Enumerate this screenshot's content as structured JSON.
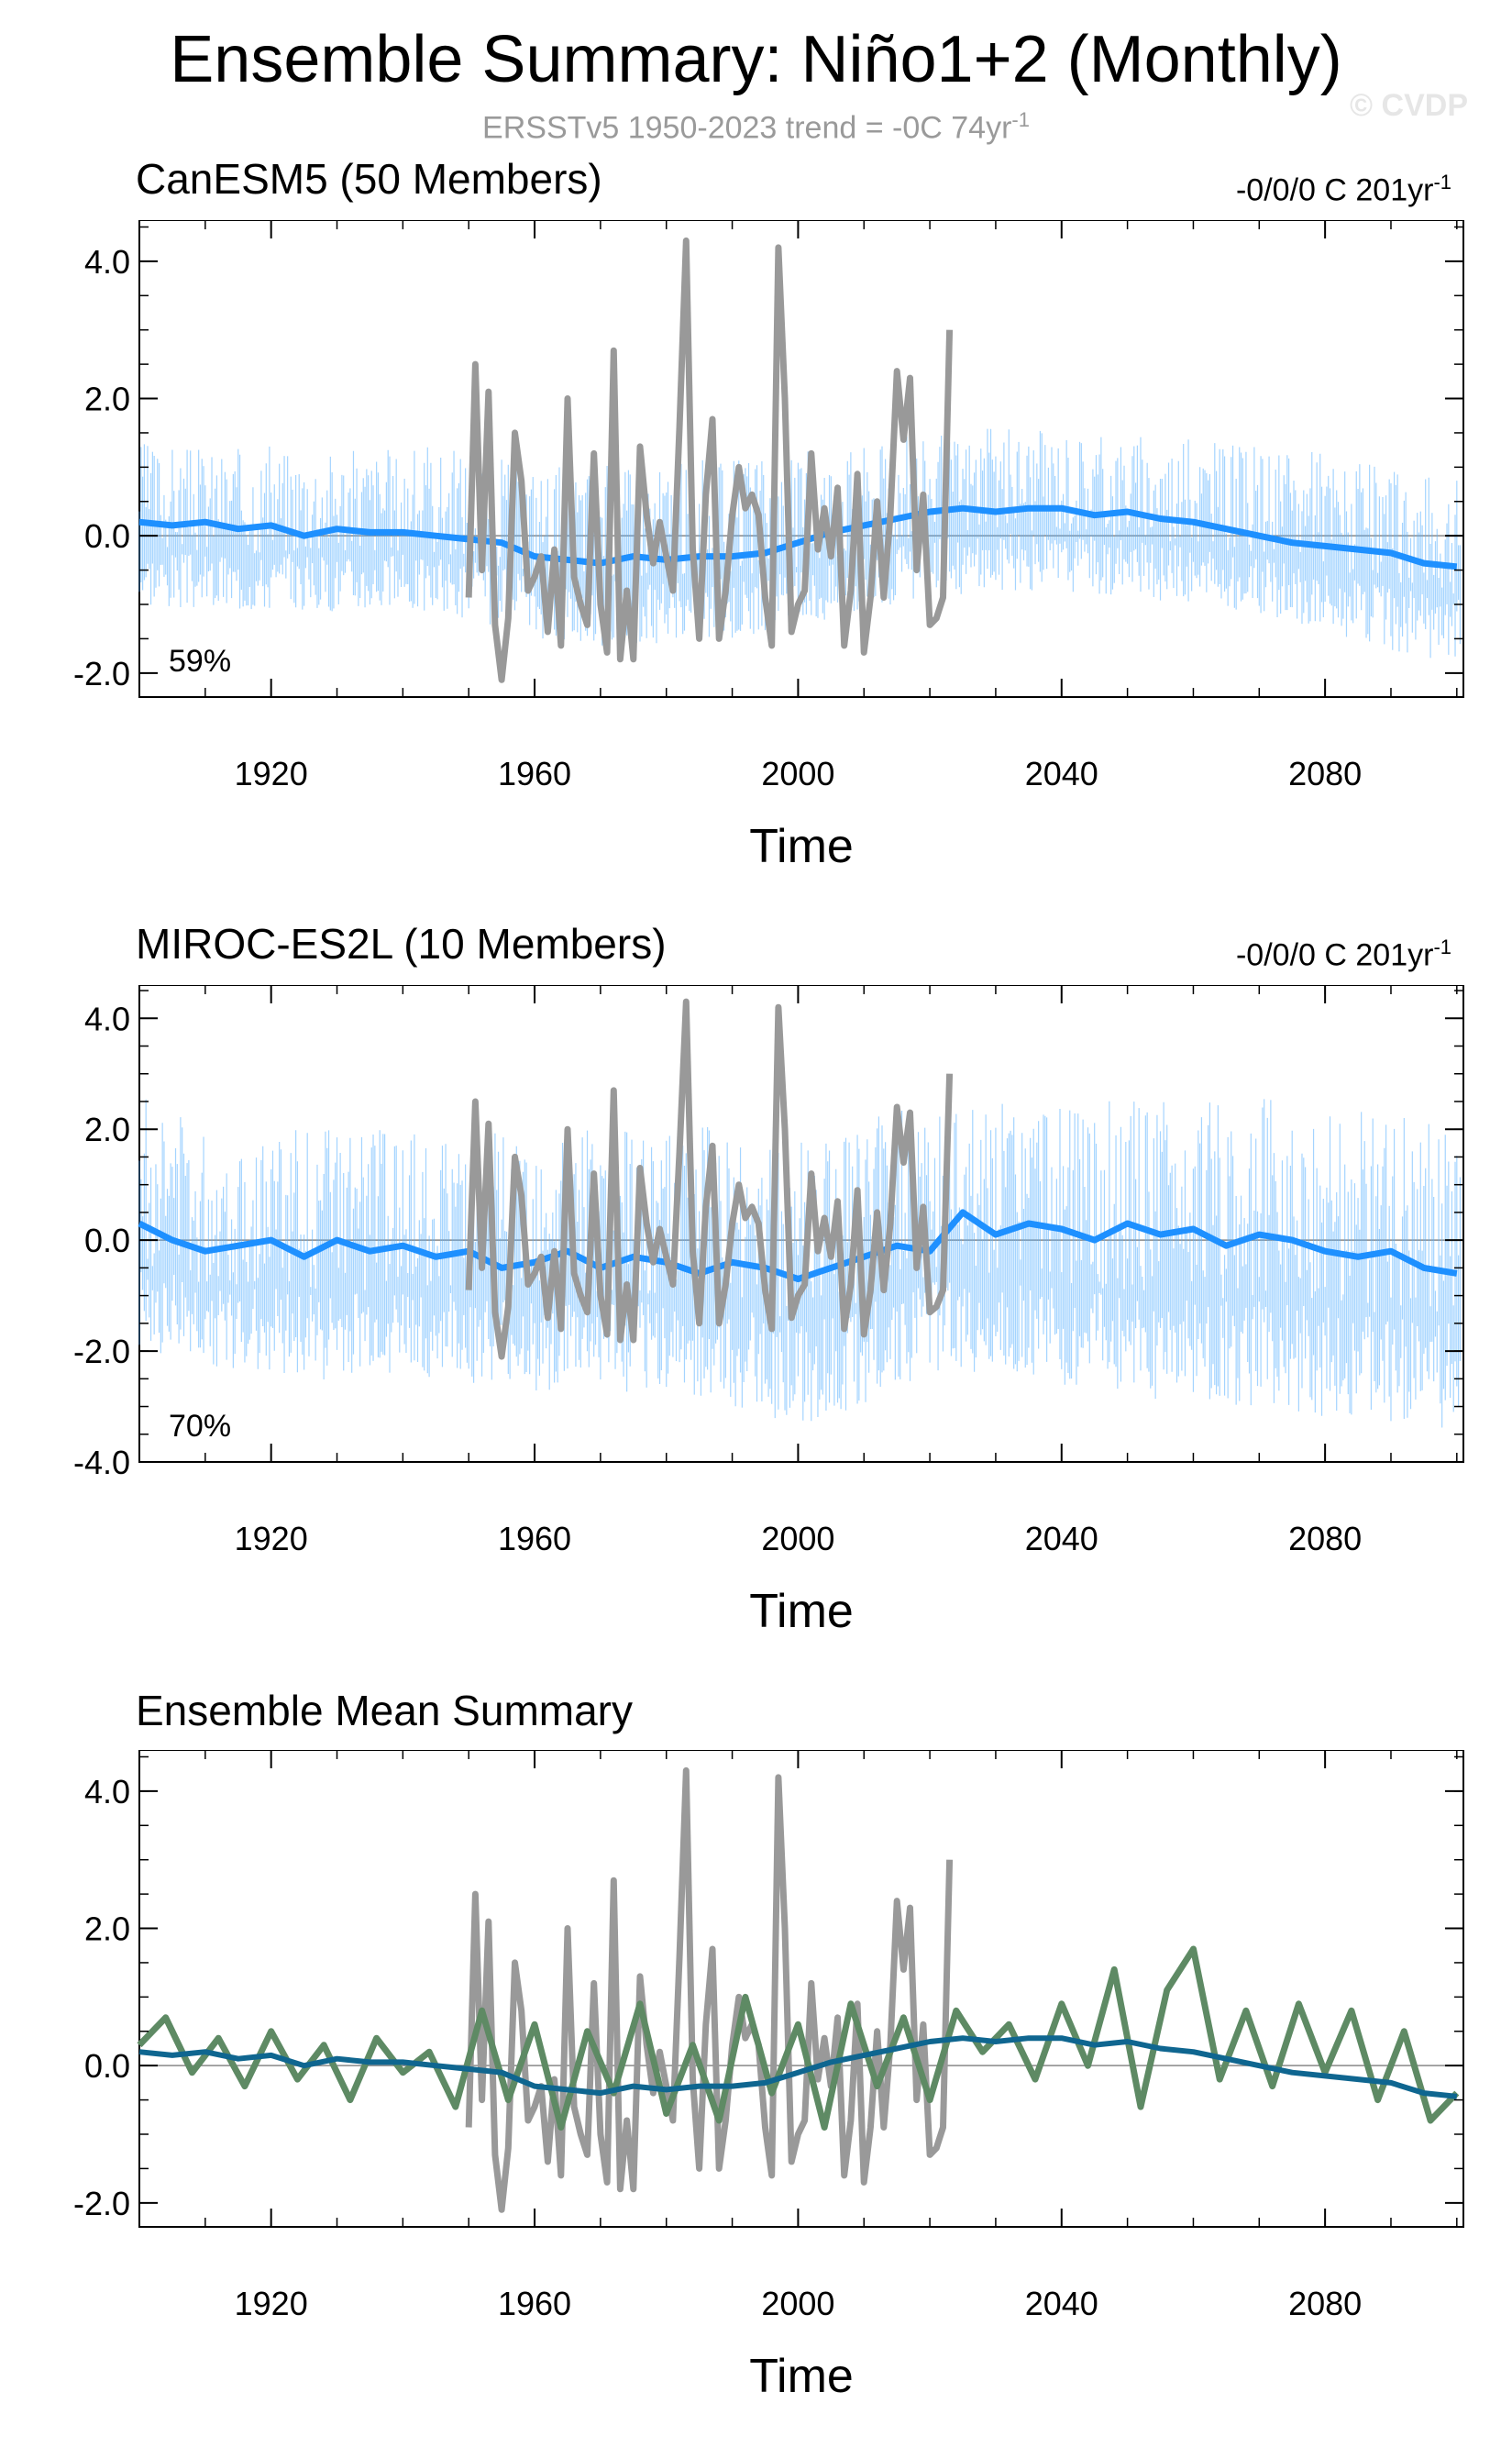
{
  "title": "Ensemble Summary: Niño1+2 (Monthly)",
  "subtitle": {
    "text": "ERSSTv5 1950-2023 trend = -0C 74yr",
    "sup": "-1"
  },
  "watermark": "© CVDP",
  "colors": {
    "observations": "#999999",
    "canesm5_title": "#1a6fa0",
    "miroc_title": "#5e8a64",
    "member_spread": "#5ab0ff",
    "ensemble_mean": "#1e90ff",
    "canesm5_mean_line": "#0f6690",
    "miroc_mean_line": "#5e8a64"
  },
  "chart_data": [
    {
      "type": "line",
      "title": "CanESM5 (50 Members)",
      "trend": {
        "text": "-0/0/0 C 201yr",
        "sup": "-1"
      },
      "percent_label": "59%",
      "xlabel": "Time",
      "xlim": [
        1900,
        2101
      ],
      "ylim": [
        -2.35,
        4.6
      ],
      "xticks": [
        "1920",
        "1960",
        "2000",
        "2040",
        "2080"
      ],
      "yticks": [
        "4.0",
        "2.0",
        "0.0",
        "-2.0"
      ],
      "grid": false,
      "series": [
        {
          "role": "member-spread",
          "x": [
            1900,
            1910,
            1920,
            1930,
            1940,
            1950,
            1960,
            1970,
            1980,
            1990,
            2000,
            2010,
            2020,
            2030,
            2040,
            2050,
            2060,
            2070,
            2080,
            2090,
            2100
          ],
          "upper": [
            1.4,
            1.3,
            1.3,
            1.3,
            1.3,
            1.3,
            1.1,
            1.1,
            1.1,
            1.1,
            1.2,
            1.4,
            1.5,
            1.6,
            1.6,
            1.5,
            1.4,
            1.3,
            1.2,
            1.0,
            0.9
          ],
          "lower": [
            -1.0,
            -1.1,
            -1.1,
            -1.1,
            -1.1,
            -1.2,
            -1.5,
            -1.6,
            -1.6,
            -1.5,
            -1.4,
            -1.1,
            -0.9,
            -0.8,
            -0.8,
            -0.9,
            -1.0,
            -1.2,
            -1.4,
            -1.7,
            -1.9
          ]
        },
        {
          "role": "ensemble-mean",
          "x": [
            1900,
            1905,
            1910,
            1915,
            1920,
            1925,
            1930,
            1935,
            1940,
            1945,
            1950,
            1955,
            1960,
            1965,
            1970,
            1975,
            1980,
            1985,
            1990,
            1995,
            2000,
            2005,
            2010,
            2015,
            2020,
            2025,
            2030,
            2035,
            2040,
            2045,
            2050,
            2055,
            2060,
            2065,
            2070,
            2075,
            2080,
            2085,
            2090,
            2095,
            2100
          ],
          "y": [
            0.2,
            0.15,
            0.2,
            0.1,
            0.15,
            0.0,
            0.1,
            0.05,
            0.05,
            0.0,
            -0.05,
            -0.1,
            -0.3,
            -0.35,
            -0.4,
            -0.3,
            -0.35,
            -0.3,
            -0.3,
            -0.25,
            -0.1,
            0.05,
            0.15,
            0.25,
            0.35,
            0.4,
            0.35,
            0.4,
            0.4,
            0.3,
            0.35,
            0.25,
            0.2,
            0.1,
            0.0,
            -0.1,
            -0.15,
            -0.2,
            -0.25,
            -0.4,
            -0.45
          ]
        },
        {
          "role": "observations",
          "x": [
            1950,
            1951,
            1952,
            1953,
            1954,
            1955,
            1956,
            1957,
            1958,
            1959,
            1960,
            1961,
            1962,
            1963,
            1964,
            1965,
            1966,
            1967,
            1968,
            1969,
            1970,
            1971,
            1972,
            1973,
            1974,
            1975,
            1976,
            1977,
            1978,
            1979,
            1980,
            1981,
            1982,
            1983,
            1984,
            1985,
            1986,
            1987,
            1988,
            1989,
            1990,
            1991,
            1992,
            1993,
            1994,
            1995,
            1996,
            1997,
            1998,
            1999,
            2000,
            2001,
            2002,
            2003,
            2004,
            2005,
            2006,
            2007,
            2008,
            2009,
            2010,
            2011,
            2012,
            2013,
            2014,
            2015,
            2016,
            2017,
            2018,
            2019,
            2020,
            2021,
            2022,
            2023
          ],
          "y": [
            -0.9,
            2.5,
            -0.5,
            2.1,
            -1.3,
            -2.1,
            -1.2,
            1.5,
            0.8,
            -0.8,
            -0.6,
            -0.3,
            -1.4,
            -0.2,
            -1.6,
            2.0,
            -0.6,
            -1.0,
            -1.3,
            1.2,
            -1.0,
            -1.7,
            2.7,
            -1.8,
            -0.8,
            -1.8,
            1.3,
            0.3,
            -0.4,
            0.2,
            -0.3,
            -0.8,
            1.6,
            4.3,
            -0.2,
            -1.5,
            0.6,
            1.7,
            -1.5,
            -0.8,
            0.3,
            1.0,
            0.4,
            0.6,
            0.3,
            -0.9,
            -1.6,
            4.2,
            2.0,
            -1.4,
            -1.0,
            -0.8,
            1.2,
            -0.2,
            0.4,
            -0.3,
            0.7,
            -1.6,
            -0.8,
            0.9,
            -1.7,
            -0.9,
            0.5,
            -0.9,
            0.3,
            2.4,
            1.4,
            2.3,
            -0.5,
            0.6,
            -1.3,
            -1.2,
            -0.9,
            3.0
          ]
        }
      ]
    },
    {
      "type": "line",
      "title": "MIROC-ES2L (10 Members)",
      "trend": {
        "text": "-0/0/0 C 201yr",
        "sup": "-1"
      },
      "percent_label": "70%",
      "xlabel": "Time",
      "xlim": [
        1900,
        2101
      ],
      "ylim": [
        -4.0,
        4.6
      ],
      "xticks": [
        "1920",
        "1960",
        "2000",
        "2040",
        "2080"
      ],
      "yticks": [
        "4.0",
        "2.0",
        "0.0",
        "-2.0",
        "-4.0"
      ],
      "grid": false,
      "series": [
        {
          "role": "member-spread",
          "x": [
            1900,
            1910,
            1920,
            1930,
            1940,
            1950,
            1960,
            1970,
            1980,
            1990,
            2000,
            2010,
            2020,
            2030,
            2040,
            2050,
            2060,
            2070,
            2080,
            2090,
            2100
          ],
          "upper": [
            2.6,
            2.0,
            2.0,
            2.0,
            2.0,
            2.1,
            2.0,
            2.0,
            2.0,
            2.1,
            2.1,
            2.2,
            2.6,
            2.5,
            2.4,
            2.6,
            2.5,
            2.6,
            2.5,
            2.3,
            2.0
          ],
          "lower": [
            -2.0,
            -2.3,
            -2.4,
            -2.6,
            -2.4,
            -2.6,
            -2.8,
            -2.7,
            -2.8,
            -3.0,
            -3.4,
            -3.0,
            -2.4,
            -2.4,
            -2.6,
            -2.8,
            -3.0,
            -3.0,
            -3.2,
            -3.4,
            -3.4
          ]
        },
        {
          "role": "ensemble-mean",
          "x": [
            1900,
            1905,
            1910,
            1915,
            1920,
            1925,
            1930,
            1935,
            1940,
            1945,
            1950,
            1955,
            1960,
            1965,
            1970,
            1975,
            1980,
            1985,
            1990,
            1995,
            2000,
            2005,
            2010,
            2015,
            2020,
            2025,
            2030,
            2035,
            2040,
            2045,
            2050,
            2055,
            2060,
            2065,
            2070,
            2075,
            2080,
            2085,
            2090,
            2095,
            2100
          ],
          "y": [
            0.3,
            0.0,
            -0.2,
            -0.1,
            0.0,
            -0.3,
            0.0,
            -0.2,
            -0.1,
            -0.3,
            -0.2,
            -0.5,
            -0.4,
            -0.2,
            -0.5,
            -0.3,
            -0.4,
            -0.6,
            -0.4,
            -0.5,
            -0.7,
            -0.5,
            -0.3,
            -0.1,
            -0.2,
            0.5,
            0.1,
            0.3,
            0.2,
            0.0,
            0.3,
            0.1,
            0.2,
            -0.1,
            0.1,
            0.0,
            -0.2,
            -0.3,
            -0.2,
            -0.5,
            -0.6
          ]
        },
        {
          "role": "observations",
          "x": [
            1950,
            1951,
            1952,
            1953,
            1954,
            1955,
            1956,
            1957,
            1958,
            1959,
            1960,
            1961,
            1962,
            1963,
            1964,
            1965,
            1966,
            1967,
            1968,
            1969,
            1970,
            1971,
            1972,
            1973,
            1974,
            1975,
            1976,
            1977,
            1978,
            1979,
            1980,
            1981,
            1982,
            1983,
            1984,
            1985,
            1986,
            1987,
            1988,
            1989,
            1990,
            1991,
            1992,
            1993,
            1994,
            1995,
            1996,
            1997,
            1998,
            1999,
            2000,
            2001,
            2002,
            2003,
            2004,
            2005,
            2006,
            2007,
            2008,
            2009,
            2010,
            2011,
            2012,
            2013,
            2014,
            2015,
            2016,
            2017,
            2018,
            2019,
            2020,
            2021,
            2022,
            2023
          ],
          "y": [
            -0.9,
            2.5,
            -0.5,
            2.1,
            -1.3,
            -2.1,
            -1.2,
            1.5,
            0.8,
            -0.8,
            -0.6,
            -0.3,
            -1.4,
            -0.2,
            -1.6,
            2.0,
            -0.6,
            -1.0,
            -1.3,
            1.2,
            -1.0,
            -1.7,
            2.7,
            -1.8,
            -0.8,
            -1.8,
            1.3,
            0.3,
            -0.4,
            0.2,
            -0.3,
            -0.8,
            1.6,
            4.3,
            -0.2,
            -1.5,
            0.6,
            1.7,
            -1.5,
            -0.8,
            0.3,
            1.0,
            0.4,
            0.6,
            0.3,
            -0.9,
            -1.6,
            4.2,
            2.0,
            -1.4,
            -1.0,
            -0.8,
            1.2,
            -0.2,
            0.4,
            -0.3,
            0.7,
            -1.6,
            -0.8,
            0.9,
            -1.7,
            -0.9,
            0.5,
            -0.9,
            0.3,
            2.4,
            1.4,
            2.3,
            -0.5,
            0.6,
            -1.3,
            -1.2,
            -0.9,
            3.0
          ]
        }
      ]
    },
    {
      "type": "line",
      "title": "Ensemble Mean Summary",
      "xlabel": "Time",
      "xlim": [
        1900,
        2101
      ],
      "ylim": [
        -2.35,
        4.6
      ],
      "xticks": [
        "1920",
        "1960",
        "2000",
        "2040",
        "2080"
      ],
      "yticks": [
        "4.0",
        "2.0",
        "0.0",
        "-2.0"
      ],
      "grid": false,
      "series": [
        {
          "role": "observations",
          "x": [
            1950,
            1951,
            1952,
            1953,
            1954,
            1955,
            1956,
            1957,
            1958,
            1959,
            1960,
            1961,
            1962,
            1963,
            1964,
            1965,
            1966,
            1967,
            1968,
            1969,
            1970,
            1971,
            1972,
            1973,
            1974,
            1975,
            1976,
            1977,
            1978,
            1979,
            1980,
            1981,
            1982,
            1983,
            1984,
            1985,
            1986,
            1987,
            1988,
            1989,
            1990,
            1991,
            1992,
            1993,
            1994,
            1995,
            1996,
            1997,
            1998,
            1999,
            2000,
            2001,
            2002,
            2003,
            2004,
            2005,
            2006,
            2007,
            2008,
            2009,
            2010,
            2011,
            2012,
            2013,
            2014,
            2015,
            2016,
            2017,
            2018,
            2019,
            2020,
            2021,
            2022,
            2023
          ],
          "y": [
            -0.9,
            2.5,
            -0.5,
            2.1,
            -1.3,
            -2.1,
            -1.2,
            1.5,
            0.8,
            -0.8,
            -0.6,
            -0.3,
            -1.4,
            -0.2,
            -1.6,
            2.0,
            -0.6,
            -1.0,
            -1.3,
            1.2,
            -1.0,
            -1.7,
            2.7,
            -1.8,
            -0.8,
            -1.8,
            1.3,
            0.3,
            -0.4,
            0.2,
            -0.3,
            -0.8,
            1.6,
            4.3,
            -0.2,
            -1.5,
            0.6,
            1.7,
            -1.5,
            -0.8,
            0.3,
            1.0,
            0.4,
            0.6,
            0.3,
            -0.9,
            -1.6,
            4.2,
            2.0,
            -1.4,
            -1.0,
            -0.8,
            1.2,
            -0.2,
            0.4,
            -0.3,
            0.7,
            -1.6,
            -0.8,
            0.9,
            -1.7,
            -0.9,
            0.5,
            -0.9,
            0.3,
            2.4,
            1.4,
            2.3,
            -0.5,
            0.6,
            -1.3,
            -1.2,
            -0.9,
            3.0
          ]
        },
        {
          "role": "miroc-es2l-mean",
          "x": [
            1900,
            1904,
            1908,
            1912,
            1916,
            1920,
            1924,
            1928,
            1932,
            1936,
            1940,
            1944,
            1948,
            1952,
            1956,
            1960,
            1964,
            1968,
            1972,
            1976,
            1980,
            1984,
            1988,
            1992,
            1996,
            2000,
            2004,
            2008,
            2012,
            2016,
            2020,
            2024,
            2028,
            2032,
            2036,
            2040,
            2044,
            2048,
            2052,
            2056,
            2060,
            2064,
            2068,
            2072,
            2076,
            2080,
            2084,
            2088,
            2092,
            2096,
            2100
          ],
          "y": [
            0.3,
            0.7,
            -0.1,
            0.4,
            -0.3,
            0.5,
            -0.2,
            0.3,
            -0.5,
            0.4,
            -0.1,
            0.2,
            -0.6,
            0.8,
            -0.5,
            0.6,
            -0.9,
            0.5,
            -0.4,
            0.9,
            -0.7,
            0.3,
            -0.8,
            1.0,
            -0.4,
            0.6,
            -0.9,
            0.9,
            -0.3,
            0.7,
            -0.5,
            0.8,
            0.2,
            0.6,
            -0.2,
            0.9,
            0.0,
            1.4,
            -0.6,
            1.1,
            1.7,
            -0.2,
            0.8,
            -0.3,
            0.9,
            -0.1,
            0.8,
            -0.5,
            0.5,
            -0.8,
            -0.4
          ]
        },
        {
          "role": "canesm5-mean",
          "x": [
            1900,
            1905,
            1910,
            1915,
            1920,
            1925,
            1930,
            1935,
            1940,
            1945,
            1950,
            1955,
            1960,
            1965,
            1970,
            1975,
            1980,
            1985,
            1990,
            1995,
            2000,
            2005,
            2010,
            2015,
            2020,
            2025,
            2030,
            2035,
            2040,
            2045,
            2050,
            2055,
            2060,
            2065,
            2070,
            2075,
            2080,
            2085,
            2090,
            2095,
            2100
          ],
          "y": [
            0.2,
            0.15,
            0.2,
            0.1,
            0.15,
            0.0,
            0.1,
            0.05,
            0.05,
            0.0,
            -0.05,
            -0.1,
            -0.3,
            -0.35,
            -0.4,
            -0.3,
            -0.35,
            -0.3,
            -0.3,
            -0.25,
            -0.1,
            0.05,
            0.15,
            0.25,
            0.35,
            0.4,
            0.35,
            0.4,
            0.4,
            0.3,
            0.35,
            0.25,
            0.2,
            0.1,
            0.0,
            -0.1,
            -0.15,
            -0.2,
            -0.25,
            -0.4,
            -0.45
          ]
        }
      ]
    }
  ]
}
